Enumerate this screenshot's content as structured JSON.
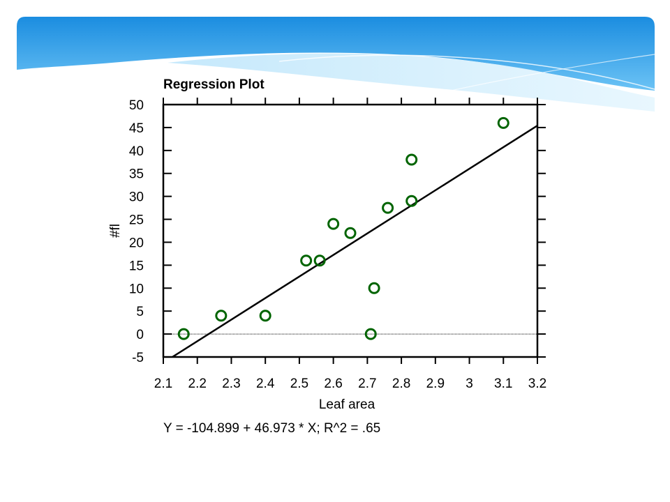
{
  "slide": {
    "equation": "Y = -104.899 + 46.973 * X; R^2 = .65"
  },
  "colors": {
    "banner_top": "#1e8fe0",
    "banner_light": "#8fd0f7",
    "point_stroke": "#006400",
    "line": "#000000"
  },
  "chart_data": {
    "type": "scatter",
    "title": "Regression Plot",
    "xlabel": "Leaf area",
    "ylabel": "#fl",
    "xlim": [
      2.1,
      3.2
    ],
    "ylim": [
      -5,
      50
    ],
    "xticks": [
      2.1,
      2.2,
      2.3,
      2.4,
      2.5,
      2.6,
      2.7,
      2.8,
      2.9,
      3,
      3.1,
      3.2
    ],
    "xtick_labels": [
      "2.1",
      "2.2",
      "2.3",
      "2.4",
      "2.5",
      "2.6",
      "2.7",
      "2.8",
      "2.9",
      "3",
      "3.1",
      "3.2"
    ],
    "yticks": [
      -5,
      0,
      5,
      10,
      15,
      20,
      25,
      30,
      35,
      40,
      45,
      50
    ],
    "ytick_labels": [
      "-5",
      "0",
      "5",
      "10",
      "15",
      "20",
      "25",
      "30",
      "35",
      "40",
      "45",
      "50"
    ],
    "points": [
      {
        "x": 2.16,
        "y": 0
      },
      {
        "x": 2.27,
        "y": 4
      },
      {
        "x": 2.4,
        "y": 4
      },
      {
        "x": 2.52,
        "y": 16
      },
      {
        "x": 2.56,
        "y": 16
      },
      {
        "x": 2.6,
        "y": 24
      },
      {
        "x": 2.65,
        "y": 22
      },
      {
        "x": 2.71,
        "y": 0
      },
      {
        "x": 2.72,
        "y": 10
      },
      {
        "x": 2.76,
        "y": 27.5
      },
      {
        "x": 2.83,
        "y": 38
      },
      {
        "x": 2.83,
        "y": 29
      },
      {
        "x": 3.1,
        "y": 46
      }
    ],
    "regression": {
      "intercept": -104.899,
      "slope": 46.973,
      "r2": 0.65
    },
    "reference_line_y": 0,
    "grid": false,
    "legend": "none"
  }
}
